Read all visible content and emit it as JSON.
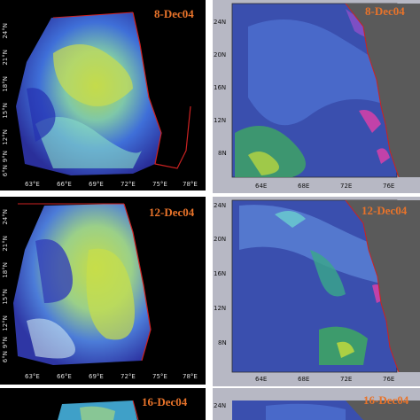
{
  "colors": {
    "label": "#e8732a",
    "chl_background": "#000000",
    "wind_background": "#b7b8c4",
    "land": "#5a5a5a",
    "coast": "#cc2222"
  },
  "rows": [
    {
      "date_left": "8-Dec04",
      "date_right": "8-Dec04"
    },
    {
      "date_left": "12-Dec04",
      "date_right": "12-Dec04"
    },
    {
      "date_left": "16-Dec04",
      "date_right": "16-Dec04"
    }
  ],
  "chl_axes": {
    "x_ticks": [
      "63°E",
      "66°E",
      "69°E",
      "72°E",
      "75°E",
      "78°E"
    ],
    "y_ticks": [
      "24°N",
      "21°N",
      "18°N",
      "15°N",
      "12°N",
      "9°N",
      "6°N"
    ]
  },
  "wind_axes": {
    "x_ticks": [
      "64E",
      "68E",
      "72E",
      "76E"
    ],
    "y_ticks": [
      "24N",
      "20N",
      "16N",
      "12N",
      "8N"
    ]
  }
}
